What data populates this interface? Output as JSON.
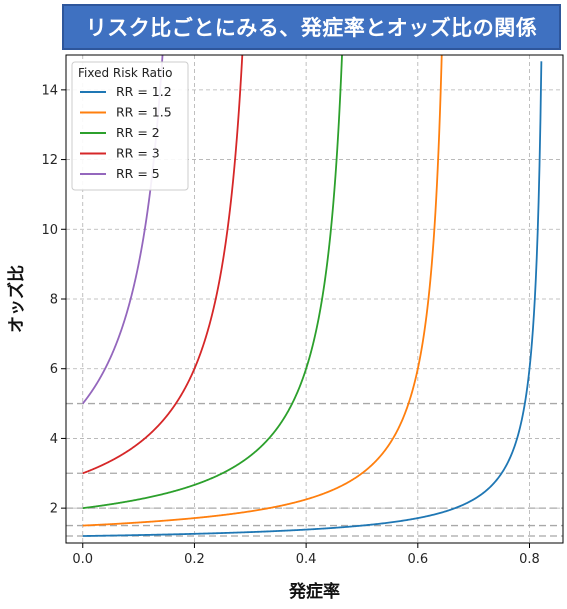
{
  "title": "リスク比ごとにみる、発症率とオッズ比の関係",
  "chart_data": {
    "type": "line",
    "xlabel": "発症率",
    "ylabel": "オッズ比",
    "xlim": [
      -0.03,
      0.86
    ],
    "ylim": [
      1.0,
      15.0
    ],
    "x_ticks": [
      "0.0",
      "0.2",
      "0.4",
      "0.6",
      "0.8"
    ],
    "y_ticks": [
      "2",
      "4",
      "6",
      "8",
      "10",
      "12",
      "14"
    ],
    "grid": true,
    "legend_title": "Fixed Risk Ratio",
    "legend_position": "top-left",
    "reference_lines_y": [
      1.2,
      1.5,
      2,
      3,
      5
    ],
    "series": [
      {
        "name": "RR = 1.2",
        "rr": 1.2,
        "color": "#1f77b4",
        "x": [
          0.0,
          0.1,
          0.2,
          0.3,
          0.4,
          0.5,
          0.6,
          0.7,
          0.75,
          0.78,
          0.8,
          0.81,
          0.82
        ],
        "y": [
          1.2,
          1.23,
          1.26,
          1.31,
          1.38,
          1.5,
          1.71,
          2.29,
          3.0,
          4.09,
          6.0,
          8.33,
          14.6
        ]
      },
      {
        "name": "RR = 1.5",
        "rr": 1.5,
        "color": "#ff7f0e",
        "x": [
          0.0,
          0.1,
          0.2,
          0.3,
          0.4,
          0.5,
          0.55,
          0.6,
          0.62,
          0.64,
          0.65
        ],
        "y": [
          1.5,
          1.59,
          1.71,
          1.91,
          2.25,
          3.0,
          4.07,
          6.0,
          7.76,
          11.25,
          14.7
        ]
      },
      {
        "name": "RR = 2",
        "rr": 2,
        "color": "#2ca02c",
        "x": [
          0.0,
          0.1,
          0.2,
          0.3,
          0.35,
          0.4,
          0.42,
          0.44,
          0.46,
          0.47
        ],
        "y": [
          2.0,
          2.25,
          2.67,
          3.5,
          4.33,
          6.0,
          7.25,
          9.17,
          12.5,
          14.5
        ]
      },
      {
        "name": "RR = 3",
        "rr": 3,
        "color": "#d62728",
        "x": [
          0.0,
          0.05,
          0.1,
          0.15,
          0.2,
          0.23,
          0.26,
          0.28,
          0.3
        ],
        "y": [
          3.0,
          3.4,
          4.0,
          5.0,
          7.0,
          9.0,
          12.2,
          15.0,
          15.0
        ]
      },
      {
        "name": "RR = 5",
        "rr": 5,
        "color": "#9467bd",
        "x": [
          0.0,
          0.03,
          0.06,
          0.09,
          0.12,
          0.14,
          0.15
        ],
        "y": [
          5.0,
          5.6,
          6.4,
          7.5,
          9.3,
          11.5,
          13.5
        ]
      }
    ]
  }
}
